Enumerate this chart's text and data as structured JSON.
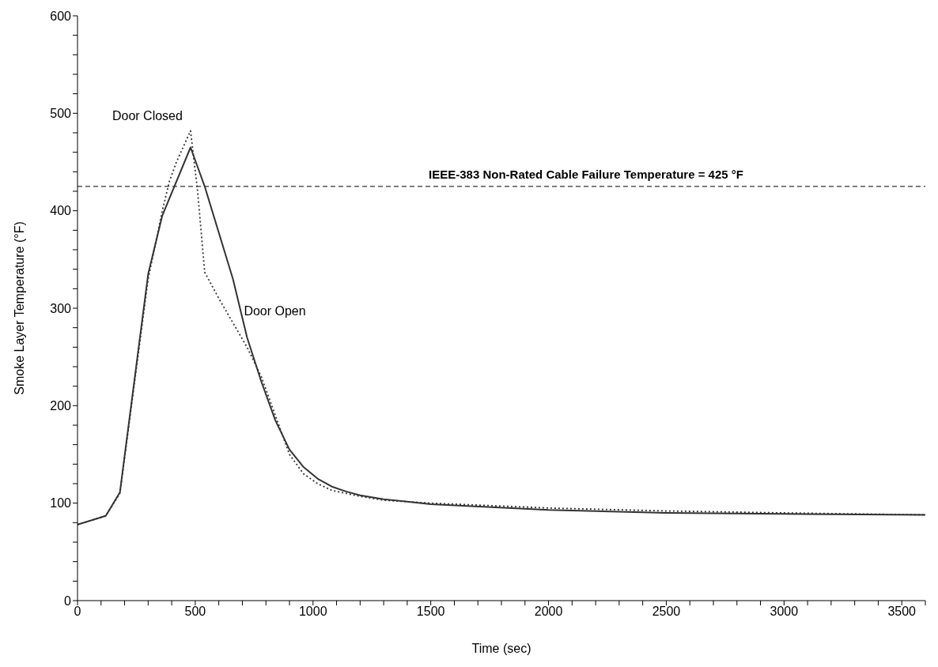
{
  "chart_data": {
    "type": "line",
    "xlabel": "Time (sec)",
    "ylabel": "Smoke Layer Temperature (°F)",
    "xlim": [
      0,
      3600
    ],
    "ylim": [
      0,
      600
    ],
    "xticks": [
      0,
      {
        "value": 100,
        "label": null
      },
      {
        "value": 200,
        "label": null
      },
      {
        "value": 300,
        "label": null
      },
      {
        "value": 400,
        "label": null
      },
      500,
      {
        "value": 600,
        "label": null
      },
      {
        "value": 700,
        "label": null
      },
      {
        "value": 800,
        "label": null
      },
      {
        "value": 900,
        "label": null
      },
      1000,
      {
        "value": 1100,
        "label": null
      },
      {
        "value": 1200,
        "label": null
      },
      {
        "value": 1300,
        "label": null
      },
      {
        "value": 1400,
        "label": null
      },
      1500,
      {
        "value": 1600,
        "label": null
      },
      {
        "value": 1700,
        "label": null
      },
      {
        "value": 1800,
        "label": null
      },
      {
        "value": 1900,
        "label": null
      },
      2000,
      {
        "value": 2100,
        "label": null
      },
      {
        "value": 2200,
        "label": null
      },
      {
        "value": 2300,
        "label": null
      },
      {
        "value": 2400,
        "label": null
      },
      2500,
      {
        "value": 2600,
        "label": null
      },
      {
        "value": 2700,
        "label": null
      },
      {
        "value": 2800,
        "label": null
      },
      {
        "value": 2900,
        "label": null
      },
      3000,
      {
        "value": 3100,
        "label": null
      },
      {
        "value": 3200,
        "label": null
      },
      {
        "value": 3300,
        "label": null
      },
      {
        "value": 3400,
        "label": null
      },
      3500,
      {
        "value": 3600,
        "label": null
      }
    ],
    "yticks": [
      0,
      {
        "value": 20,
        "label": null
      },
      {
        "value": 40,
        "label": null
      },
      {
        "value": 60,
        "label": null
      },
      {
        "value": 80,
        "label": null
      },
      100,
      {
        "value": 120,
        "label": null
      },
      {
        "value": 140,
        "label": null
      },
      {
        "value": 160,
        "label": null
      },
      {
        "value": 180,
        "label": null
      },
      200,
      {
        "value": 220,
        "label": null
      },
      {
        "value": 240,
        "label": null
      },
      {
        "value": 260,
        "label": null
      },
      {
        "value": 280,
        "label": null
      },
      300,
      {
        "value": 320,
        "label": null
      },
      {
        "value": 340,
        "label": null
      },
      {
        "value": 360,
        "label": null
      },
      {
        "value": 380,
        "label": null
      },
      400,
      {
        "value": 420,
        "label": null
      },
      {
        "value": 440,
        "label": null
      },
      {
        "value": 460,
        "label": null
      },
      {
        "value": 480,
        "label": null
      },
      500,
      {
        "value": 520,
        "label": null
      },
      {
        "value": 540,
        "label": null
      },
      {
        "value": 560,
        "label": null
      },
      {
        "value": 580,
        "label": null
      },
      600
    ],
    "grid": false,
    "legend": false,
    "marker": "none",
    "series": [
      {
        "name": "Door Closed",
        "color": "#333333",
        "line_style": "dotted",
        "x": [
          0,
          120,
          180,
          240,
          300,
          360,
          390,
          420,
          480,
          510,
          540,
          600,
          660,
          720,
          780,
          840,
          900,
          960,
          1020,
          1080,
          1200,
          1300,
          1500,
          2000,
          2500,
          3000,
          3600
        ],
        "values": [
          78,
          87,
          110,
          220,
          330,
          400,
          430,
          450,
          482,
          420,
          337,
          310,
          285,
          260,
          230,
          190,
          150,
          130,
          120,
          113,
          107,
          103,
          100,
          95,
          92,
          90,
          88
        ]
      },
      {
        "name": "Door Open",
        "color": "#333333",
        "line_style": "solid",
        "x": [
          0,
          120,
          180,
          300,
          360,
          480,
          540,
          660,
          720,
          780,
          840,
          900,
          960,
          1020,
          1080,
          1140,
          1200,
          1300,
          1500,
          2000,
          2500,
          3000,
          3600
        ],
        "values": [
          78,
          87,
          111,
          335,
          395,
          465,
          425,
          330,
          270,
          225,
          185,
          155,
          137,
          125,
          117,
          112,
          108,
          104,
          99,
          93,
          90,
          89,
          88
        ]
      }
    ],
    "ref_lines": [
      {
        "axis": "y",
        "value": 425,
        "label": "IEEE-383 Non-Rated Cable Failure Temperature = 425 °F",
        "line_style": "dashed",
        "color": "#333333"
      }
    ]
  }
}
